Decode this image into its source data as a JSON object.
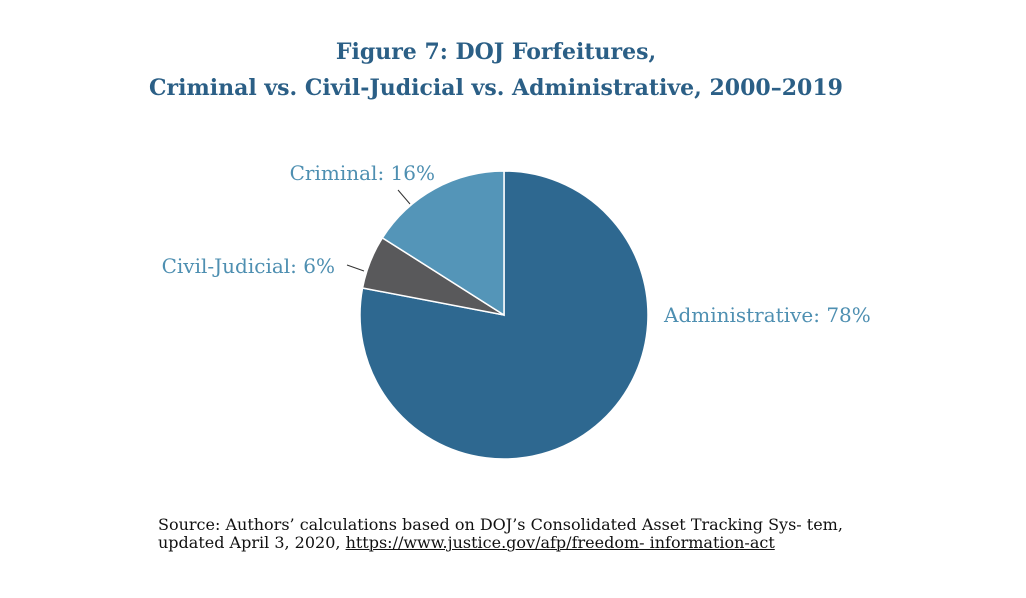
{
  "colors": {
    "title": "#2b5f86",
    "label": "#4e8fb1",
    "administrative": "#2e6890",
    "criminal": "#5495b8",
    "civil_judicial": "#59595b"
  },
  "chart_data": {
    "type": "pie",
    "title_lines": [
      "Figure 7: DOJ Forfeitures,",
      "Criminal vs. Civil-Judicial vs. Administrative, 2000–2019"
    ],
    "slices": [
      {
        "name": "Administrative",
        "value": 78,
        "label": "Administrative: 78%",
        "color": "#2e6890"
      },
      {
        "name": "Civil-Judicial",
        "value": 6,
        "label": "Civil-Judicial: 6%",
        "color": "#59595b"
      },
      {
        "name": "Criminal",
        "value": 16,
        "label": "Criminal: 16%",
        "color": "#5495b8"
      }
    ]
  },
  "source": {
    "text": "Source: Authors’ calculations based on DOJ’s Consolidated Asset Tracking Sys- tem, updated April 3, 2020, ",
    "link": "https://www.justice.gov/afp/freedom- information-act"
  }
}
